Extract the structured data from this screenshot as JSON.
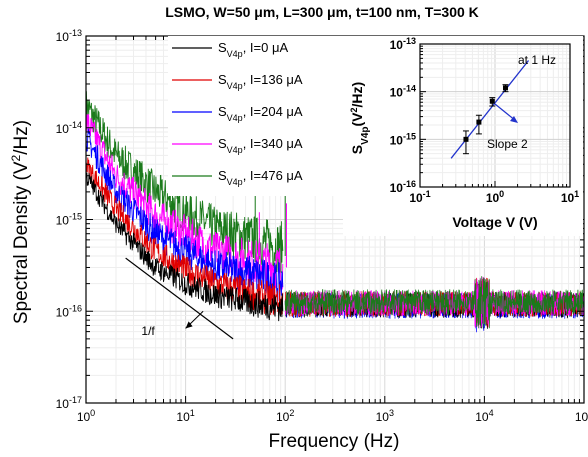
{
  "chart_data": [
    {
      "type": "line",
      "title": "LSMO, W=50 μm, L=300 μm, t=100 nm, T=300 K",
      "xlabel": "Frequency (Hz)",
      "ylabel": "Spectral Density (V²/Hz)",
      "xscale": "log",
      "yscale": "log",
      "xlim": [
        1,
        100000
      ],
      "ylim": [
        1e-17,
        1e-13
      ],
      "grid": true,
      "legend_position": "top-center",
      "xticks": [
        "10⁰",
        "10¹",
        "10²",
        "10³",
        "10⁴",
        "10⁵"
      ],
      "yticks": [
        "10⁻¹⁷",
        "10⁻¹⁶",
        "10⁻¹⁵",
        "10⁻¹⁴",
        "10⁻¹³"
      ],
      "series": [
        {
          "name": "S_V4p, I=0 μA",
          "label_main": "S",
          "label_sub": "V4p",
          "label_rest": ", I=0     μA",
          "color": "#000000",
          "x": [
            1,
            2,
            5,
            10,
            20,
            50,
            90
          ],
          "y": [
            3e-15,
            9e-16,
            3e-16,
            2e-16,
            1.5e-16,
            1.2e-16,
            1.1e-16
          ]
        },
        {
          "name": "S_V4p, I=136 μA",
          "label_main": "S",
          "label_sub": "V4p",
          "label_rest": ", I=136 μA",
          "color": "#e00000",
          "x": [
            1,
            2,
            5,
            10,
            20,
            50,
            90
          ],
          "y": [
            4e-15,
            1.3e-15,
            4.5e-16,
            2.8e-16,
            2e-16,
            1.5e-16,
            1.3e-16
          ]
        },
        {
          "name": "S_V4p, I=204 μA",
          "label_main": "S",
          "label_sub": "V4p",
          "label_rest": ", I=204 μA",
          "color": "#0000ff",
          "x": [
            1,
            2,
            5,
            10,
            20,
            50,
            90
          ],
          "y": [
            8e-15,
            2e-15,
            7e-16,
            4.5e-16,
            3e-16,
            2.5e-16,
            2e-16
          ]
        },
        {
          "name": "S_V4p, I=340 μA",
          "label_main": "S",
          "label_sub": "V4p",
          "label_rest": ", I=340 μA",
          "color": "#ff00ff",
          "x": [
            1,
            2,
            5,
            10,
            20,
            50,
            90
          ],
          "y": [
            1.2e-14,
            3e-15,
            1.1e-15,
            7e-16,
            4.5e-16,
            3.5e-16,
            3e-16
          ]
        },
        {
          "name": "S_V4p, I=476 μA",
          "label_main": "S",
          "label_sub": "V4p",
          "label_rest": ", I=476 μA",
          "color": "#1b7a1b",
          "x": [
            1,
            2,
            5,
            10,
            20,
            50,
            90
          ],
          "y": [
            1.8e-14,
            5e-15,
            2e-15,
            1.2e-15,
            8e-16,
            6e-16,
            5e-16
          ]
        }
      ],
      "floor_noise": {
        "x": [
          100,
          100000
        ],
        "y_center": 1.2e-16
      },
      "annotations": [
        {
          "text": "1/f",
          "slope_line": {
            "x": [
              2.5,
              30
            ],
            "y": [
              3.8e-16,
              5e-17
            ]
          },
          "arrow_from": [
            15,
            1e-16
          ],
          "arrow_to": [
            10,
            6.5e-17
          ]
        }
      ]
    },
    {
      "type": "scatter",
      "xlabel": "Voltage V (V)",
      "ylabel": "S_V4p (V²/Hz)",
      "xscale": "log",
      "yscale": "log",
      "xlim": [
        0.1,
        10
      ],
      "ylim": [
        1e-16,
        1e-13
      ],
      "xticks": [
        "10⁻¹",
        "10⁰",
        "10¹"
      ],
      "yticks": [
        "10⁻¹⁶",
        "10⁻¹⁵",
        "10⁻¹⁴",
        "10⁻¹³"
      ],
      "points": {
        "x": [
          0.41,
          0.61,
          0.92,
          1.38
        ],
        "y": [
          1e-15,
          2.3e-15,
          6.3e-15,
          1.2e-14
        ],
        "err_low": [
          5e-16,
          1.3e-15,
          5e-15,
          1e-14
        ],
        "err_high": [
          1.5e-15,
          3.2e-15,
          7.5e-15,
          1.4e-14
        ]
      },
      "fit_line": {
        "x": [
          0.26,
          2.8
        ],
        "y": [
          4e-16,
          4.5e-14
        ]
      },
      "annotations": [
        {
          "text": "at 1 Hz"
        },
        {
          "text": "Slope 2"
        }
      ]
    }
  ]
}
